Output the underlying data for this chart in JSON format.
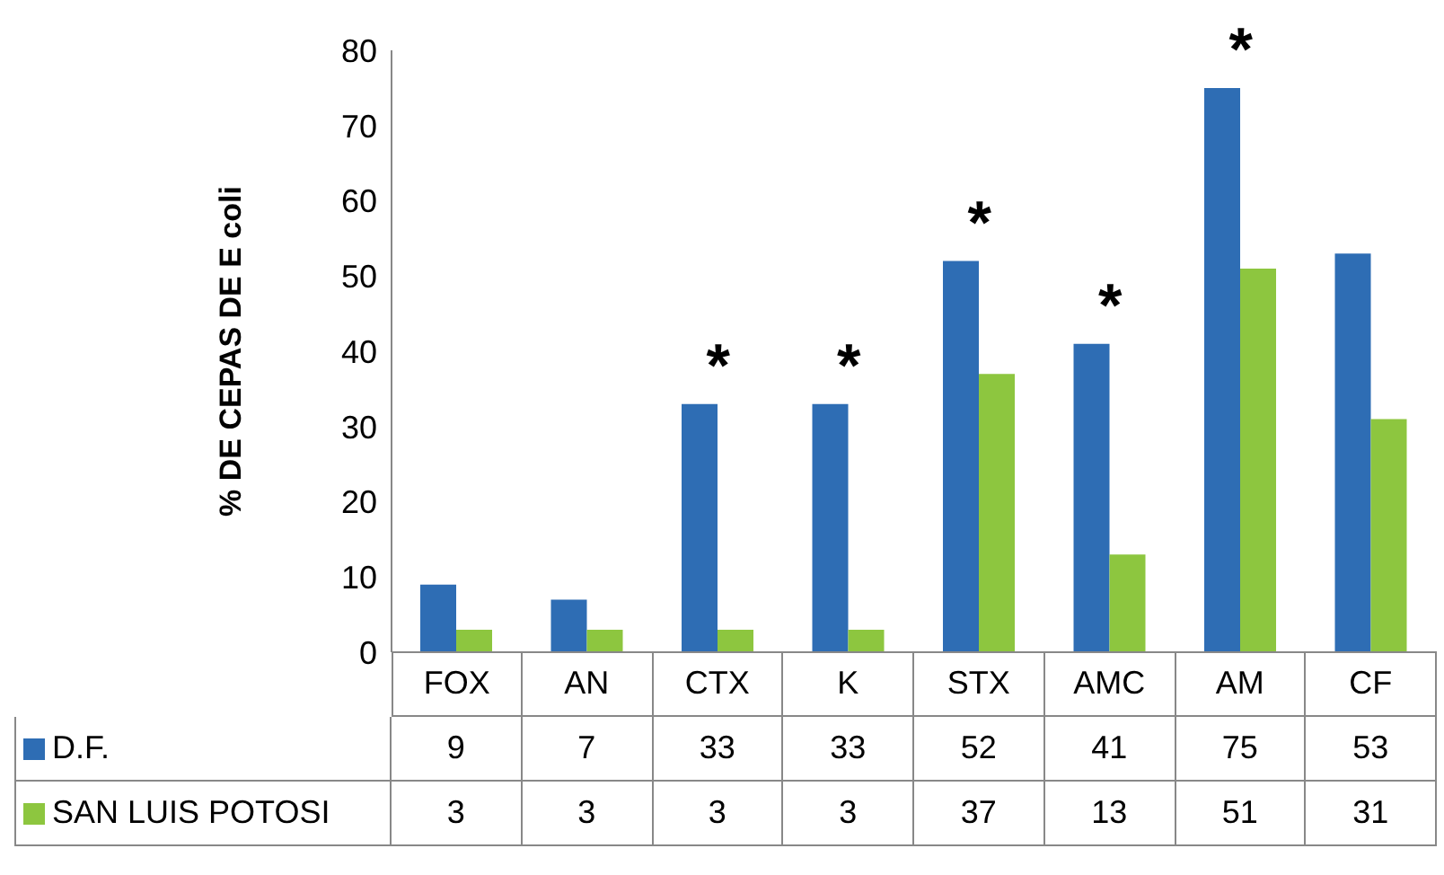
{
  "chart_data": {
    "type": "bar",
    "ylabel": "% DE CEPAS DE E coli",
    "categories": [
      "FOX",
      "AN",
      "CTX",
      "K",
      "STX",
      "AMC",
      "AM",
      "CF"
    ],
    "series": [
      {
        "name": "D.F.",
        "color": "#2e6db4",
        "values": [
          9,
          7,
          33,
          33,
          52,
          41,
          75,
          53
        ]
      },
      {
        "name": "SAN LUIS POTOSI",
        "color": "#8dc63f",
        "values": [
          3,
          3,
          3,
          3,
          37,
          13,
          51,
          31
        ]
      }
    ],
    "ylim": [
      0,
      80
    ],
    "yticks": [
      0,
      10,
      20,
      30,
      40,
      50,
      60,
      70,
      80
    ],
    "data_labels": true,
    "legend": "bottom left",
    "annotations": [
      {
        "text": "*",
        "x": "CTX",
        "y": 33
      },
      {
        "text": "*",
        "x": "K",
        "y": 33
      },
      {
        "text": "*",
        "x": "STX",
        "y": 52
      },
      {
        "text": "*",
        "x": "AMC",
        "y": 41
      },
      {
        "text": "*",
        "x": "AM",
        "y": 75
      }
    ]
  }
}
